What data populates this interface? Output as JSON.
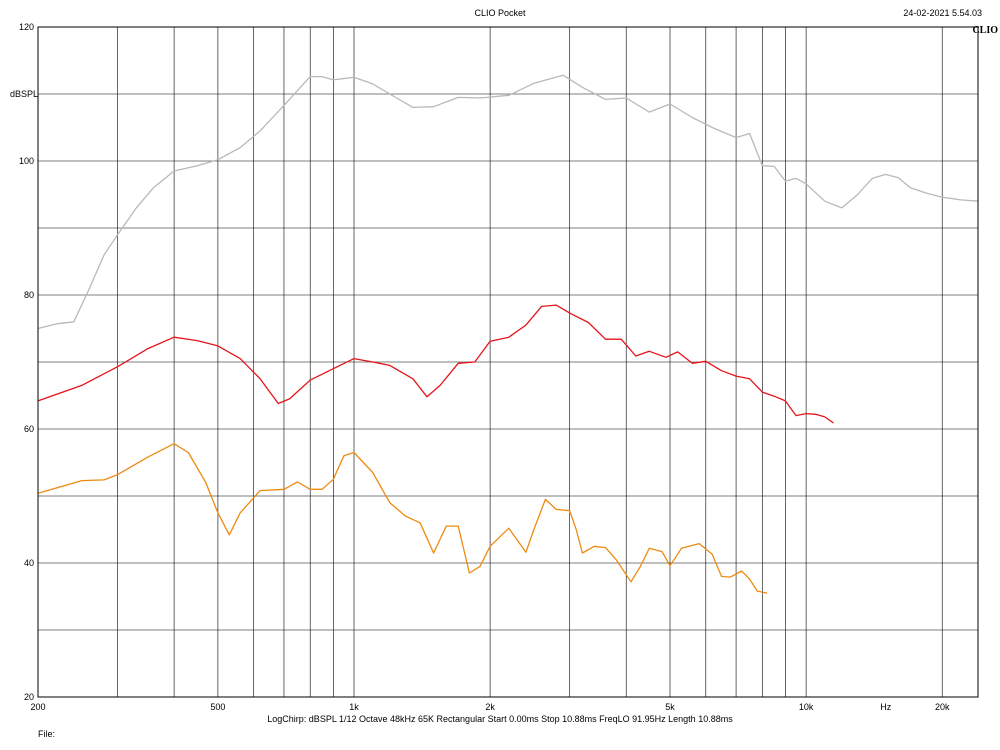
{
  "header": {
    "title": "CLIO Pocket",
    "datetime": "24-02-2021 5.54.03",
    "logo": "CLIO"
  },
  "footer": {
    "settings": "LogChirp:  dBSPL  1/12 Octave  48kHz  65K  Rectangular   Start 0.00ms    Stop 10.88ms    FreqLO 91.95Hz   Length 10.88ms",
    "file": "File:"
  },
  "chart_data": {
    "type": "line",
    "title": "CLIO Pocket",
    "xlabel": "Hz",
    "ylabel": "dBSPL",
    "xscale": "log",
    "xlim": [
      200,
      24000
    ],
    "ylim": [
      20,
      120
    ],
    "grid": true,
    "y_ticks": [
      20,
      40,
      60,
      80,
      100,
      120
    ],
    "y_gridlines": [
      20,
      30,
      40,
      50,
      60,
      70,
      80,
      90,
      100,
      110,
      120
    ],
    "x_ticks": [
      {
        "value": 200,
        "label": "200"
      },
      {
        "value": 500,
        "label": "500"
      },
      {
        "value": 1000,
        "label": "1k"
      },
      {
        "value": 2000,
        "label": "2k"
      },
      {
        "value": 5000,
        "label": "5k"
      },
      {
        "value": 10000,
        "label": "10k"
      },
      {
        "value": 15000,
        "label": "Hz"
      },
      {
        "value": 20000,
        "label": "20k"
      }
    ],
    "x_gridlines": [
      300,
      400,
      500,
      600,
      700,
      800,
      900,
      1000,
      2000,
      3000,
      4000,
      5000,
      6000,
      7000,
      8000,
      9000,
      10000,
      20000
    ],
    "series": [
      {
        "color": "#b9b9b9",
        "points": [
          [
            200,
            75
          ],
          [
            220,
            75.7
          ],
          [
            240,
            76
          ],
          [
            260,
            81
          ],
          [
            280,
            86
          ],
          [
            300,
            89
          ],
          [
            330,
            93
          ],
          [
            360,
            96
          ],
          [
            400,
            98.5
          ],
          [
            450,
            99.3
          ],
          [
            500,
            100.2
          ],
          [
            560,
            102
          ],
          [
            620,
            104.5
          ],
          [
            700,
            108.3
          ],
          [
            800,
            112.6
          ],
          [
            850,
            112.6
          ],
          [
            900,
            112.1
          ],
          [
            1000,
            112.5
          ],
          [
            1100,
            111.5
          ],
          [
            1200,
            110
          ],
          [
            1350,
            108
          ],
          [
            1500,
            108.1
          ],
          [
            1700,
            109.5
          ],
          [
            1900,
            109.4
          ],
          [
            2200,
            109.8
          ],
          [
            2500,
            111.6
          ],
          [
            2900,
            112.8
          ],
          [
            3200,
            111
          ],
          [
            3600,
            109.2
          ],
          [
            4000,
            109.4
          ],
          [
            4500,
            107.3
          ],
          [
            5000,
            108.5
          ],
          [
            5600,
            106.5
          ],
          [
            6200,
            105
          ],
          [
            7000,
            103.5
          ],
          [
            7500,
            104.1
          ],
          [
            8000,
            99.3
          ],
          [
            8500,
            99.2
          ],
          [
            9000,
            97
          ],
          [
            9500,
            97.4
          ],
          [
            10000,
            96.6
          ],
          [
            11000,
            94
          ],
          [
            12000,
            93
          ],
          [
            13000,
            95
          ],
          [
            14000,
            97.4
          ],
          [
            15000,
            98
          ],
          [
            16000,
            97.5
          ],
          [
            17000,
            96
          ],
          [
            18500,
            95.2
          ],
          [
            20000,
            94.6
          ],
          [
            22000,
            94.2
          ],
          [
            24000,
            94
          ]
        ]
      },
      {
        "color": "#e5141b",
        "points": [
          [
            200,
            64.2
          ],
          [
            250,
            66.5
          ],
          [
            300,
            69.3
          ],
          [
            350,
            72
          ],
          [
            400,
            73.7
          ],
          [
            450,
            73.2
          ],
          [
            500,
            72.4
          ],
          [
            560,
            70.5
          ],
          [
            620,
            67.5
          ],
          [
            680,
            63.8
          ],
          [
            720,
            64.5
          ],
          [
            800,
            67.3
          ],
          [
            900,
            69
          ],
          [
            1000,
            70.5
          ],
          [
            1100,
            70
          ],
          [
            1200,
            69.5
          ],
          [
            1350,
            67.5
          ],
          [
            1450,
            64.8
          ],
          [
            1550,
            66.5
          ],
          [
            1700,
            69.8
          ],
          [
            1850,
            70
          ],
          [
            2000,
            73.1
          ],
          [
            2200,
            73.7
          ],
          [
            2400,
            75.5
          ],
          [
            2600,
            78.3
          ],
          [
            2800,
            78.5
          ],
          [
            3000,
            77.3
          ],
          [
            3300,
            75.9
          ],
          [
            3600,
            73.4
          ],
          [
            3900,
            73.4
          ],
          [
            4200,
            70.9
          ],
          [
            4500,
            71.6
          ],
          [
            4900,
            70.7
          ],
          [
            5200,
            71.5
          ],
          [
            5600,
            69.8
          ],
          [
            6000,
            70.1
          ],
          [
            6500,
            68.7
          ],
          [
            7000,
            67.9
          ],
          [
            7500,
            67.5
          ],
          [
            8000,
            65.5
          ],
          [
            8500,
            64.9
          ],
          [
            9000,
            64.2
          ],
          [
            9500,
            62
          ],
          [
            10000,
            62.3
          ],
          [
            10500,
            62.2
          ],
          [
            11000,
            61.8
          ],
          [
            11500,
            60.9
          ]
        ]
      },
      {
        "color": "#ee8a12",
        "points": [
          [
            200,
            50.4
          ],
          [
            250,
            52.3
          ],
          [
            280,
            52.4
          ],
          [
            300,
            53.2
          ],
          [
            350,
            55.8
          ],
          [
            400,
            57.8
          ],
          [
            430,
            56.5
          ],
          [
            470,
            52
          ],
          [
            500,
            47.5
          ],
          [
            530,
            44.2
          ],
          [
            560,
            47.5
          ],
          [
            620,
            50.8
          ],
          [
            700,
            51
          ],
          [
            750,
            52.1
          ],
          [
            800,
            51
          ],
          [
            850,
            51
          ],
          [
            900,
            52.5
          ],
          [
            950,
            56
          ],
          [
            1000,
            56.5
          ],
          [
            1100,
            53.5
          ],
          [
            1200,
            49
          ],
          [
            1300,
            47
          ],
          [
            1400,
            46
          ],
          [
            1500,
            41.5
          ],
          [
            1600,
            45.5
          ],
          [
            1700,
            45.5
          ],
          [
            1800,
            38.5
          ],
          [
            1900,
            39.5
          ],
          [
            2000,
            42.5
          ],
          [
            2200,
            45.2
          ],
          [
            2400,
            41.6
          ],
          [
            2500,
            45
          ],
          [
            2650,
            49.5
          ],
          [
            2800,
            48
          ],
          [
            3000,
            47.8
          ],
          [
            3100,
            45
          ],
          [
            3200,
            41.5
          ],
          [
            3400,
            42.5
          ],
          [
            3600,
            42.3
          ],
          [
            3800,
            40.5
          ],
          [
            4100,
            37.2
          ],
          [
            4300,
            39.5
          ],
          [
            4500,
            42.2
          ],
          [
            4800,
            41.7
          ],
          [
            5000,
            39.6
          ],
          [
            5300,
            42.2
          ],
          [
            5800,
            42.9
          ],
          [
            6200,
            41.3
          ],
          [
            6500,
            38
          ],
          [
            6800,
            37.9
          ],
          [
            7200,
            38.8
          ],
          [
            7500,
            37.6
          ],
          [
            7800,
            35.8
          ],
          [
            8200,
            35.5
          ]
        ]
      }
    ]
  }
}
